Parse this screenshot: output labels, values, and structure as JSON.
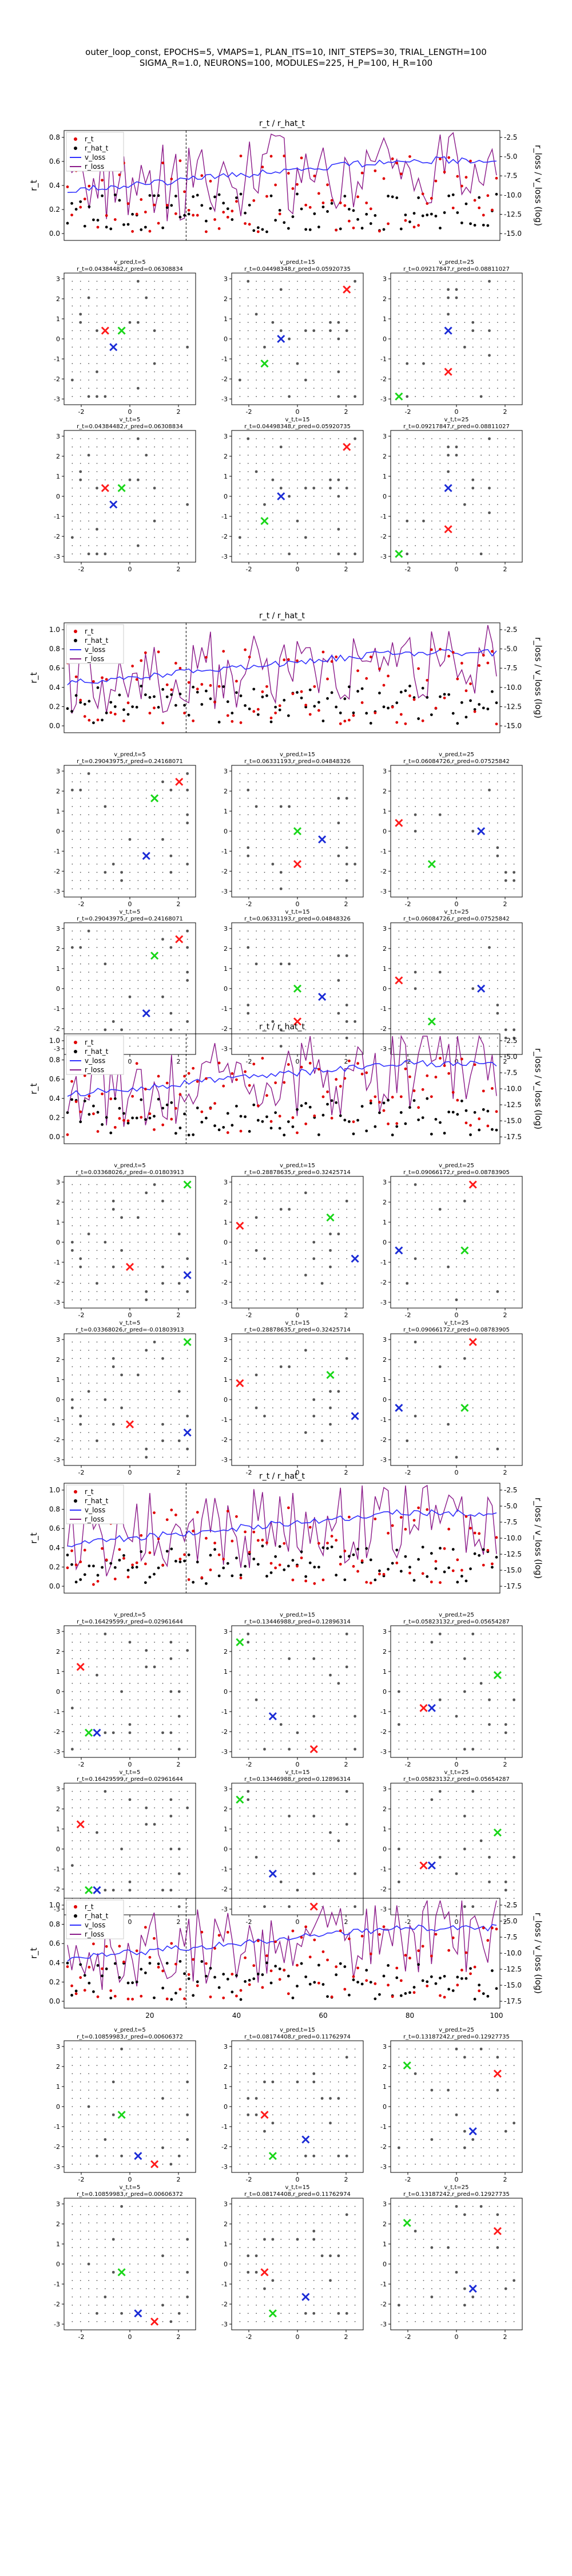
{
  "figure": {
    "title_line1": "outer_loop_const, EPOCHS=5, VMAPS=1, PLAN_ITS=10, INIT_STEPS=30, TRIAL_LENGTH=100",
    "title_line2": "SIGMA_R=1.0, NEURONS=100, MODULES=225, H_P=100, H_R=100"
  },
  "colors": {
    "r_t": "#e00000",
    "r_hat_t": "#000000",
    "v_loss": "#3030ff",
    "r_loss": "#8b1a89",
    "grid_green": "#19d619",
    "grid_red": "#ff1a1a",
    "grid_blue": "#1a2bd6",
    "grid_dot": "#555555"
  },
  "chart_data": {
    "type": "line",
    "x_ticks": [
      20,
      40,
      60,
      80,
      100
    ],
    "blocks": [
      {
        "line_title": "r_t / r_hat_t",
        "ylabel_left": "r_t",
        "ylabel_right": "r_loss / v_loss (log)",
        "y_left_ticks": [
          "0.0",
          "0.2",
          "0.4",
          "0.6",
          "0.8"
        ],
        "y_right_ticks": [
          "-2.5",
          "-5.0",
          "-7.5",
          "-10.0",
          "-12.5",
          "-15.0"
        ],
        "legend": [
          "r_t",
          "r_hat_t",
          "v_loss",
          "r_loss"
        ],
        "grid_titles_top": [
          "v_pred,t=5",
          "v_pred,t=15",
          "v_pred,t=25"
        ],
        "grid_subtitles_top": [
          "r_t=0.04384482,r_pred=0.06308834",
          "r_t=0.04498348,r_pred=0.05920735",
          "r_t=0.09217847,r_pred=0.08811027"
        ],
        "grid_titles_bottom": [
          "v_t,t=5",
          "v_t,t=15",
          "v_t,t=25"
        ],
        "grid_subtitles_bottom": [
          "r_t=0.04384482,r_pred=0.06308834",
          "r_t=0.04498348,r_pred=0.05920735",
          "r_t=0.09217847,r_pred=0.08811027"
        ],
        "xtick_labels": [
          "-2",
          "0",
          "2"
        ],
        "ytick_labels": [
          "3",
          "2",
          "1",
          "0",
          "-1",
          "-2",
          "-3"
        ]
      },
      {
        "line_title": "r_t / r_hat_t",
        "ylabel_left": "r_t",
        "ylabel_right": "r_loss / v_loss (log)",
        "y_left_ticks": [
          "0.0",
          "0.2",
          "0.4",
          "0.6",
          "0.8",
          "1.0"
        ],
        "y_right_ticks": [
          "-2.5",
          "-5.0",
          "-7.5",
          "-10.0",
          "-12.5",
          "-15.0"
        ],
        "legend": [
          "r_t",
          "r_hat_t",
          "v_loss",
          "r_loss"
        ],
        "grid_titles_top": [
          "v_pred,t=5",
          "v_pred,t=15",
          "v_pred,t=25"
        ],
        "grid_subtitles_top": [
          "r_t=0.29043975,r_pred=0.24168071",
          "r_t=0.06331193,r_pred=0.04848326",
          "r_t=0.06084726,r_pred=0.07525842"
        ],
        "grid_titles_bottom": [
          "v_t,t=5",
          "v_t,t=15",
          "v_t,t=25"
        ],
        "grid_subtitles_bottom": [
          "r_t=0.29043975,r_pred=0.24168071",
          "r_t=0.06331193,r_pred=0.04848326",
          "r_t=0.06084726,r_pred=0.07525842"
        ],
        "xtick_labels": [
          "-2",
          "0",
          "2"
        ],
        "ytick_labels": [
          "3",
          "2",
          "1",
          "0",
          "-1",
          "-2",
          "-3"
        ]
      },
      {
        "line_title": "r_t / r_hat_t",
        "ylabel_left": "r_t",
        "ylabel_right": "r_loss / v_loss (log)",
        "y_left_ticks": [
          "0.0",
          "0.2",
          "0.4",
          "0.6",
          "0.8",
          "1.0"
        ],
        "y_right_ticks": [
          "-2.5",
          "-5.0",
          "-7.5",
          "-10.0",
          "-12.5",
          "-15.0",
          "-17.5"
        ],
        "legend": [
          "r_t",
          "r_hat_t",
          "v_loss",
          "r_loss"
        ],
        "grid_titles_top": [
          "v_pred,t=5",
          "v_pred,t=15",
          "v_pred,t=25"
        ],
        "grid_subtitles_top": [
          "r_t=0.03368026,r_pred=-0.01803913",
          "r_t=0.28878635,r_pred=0.32425714",
          "r_t=0.09066172,r_pred=0.08783905"
        ],
        "grid_titles_bottom": [
          "v_t,t=5",
          "v_t,t=15",
          "v_t,t=25"
        ],
        "grid_subtitles_bottom": [
          "r_t=0.03368026,r_pred=-0.01803913",
          "r_t=0.28878635,r_pred=0.32425714",
          "r_t=0.09066172,r_pred=0.08783905"
        ],
        "xtick_labels": [
          "-2",
          "0",
          "2"
        ],
        "ytick_labels": [
          "3",
          "2",
          "1",
          "0",
          "-1",
          "-2",
          "-3"
        ]
      },
      {
        "line_title": "r_t / r_hat_t",
        "ylabel_left": "r_t",
        "ylabel_right": "r_loss / v_loss (log)",
        "y_left_ticks": [
          "0.0",
          "0.2",
          "0.4",
          "0.6",
          "0.8",
          "1.0"
        ],
        "y_right_ticks": [
          "-2.5",
          "-5.0",
          "-7.5",
          "-10.0",
          "-12.5",
          "-15.0",
          "-17.5"
        ],
        "legend": [
          "r_t",
          "r_hat_t",
          "v_loss",
          "r_loss"
        ],
        "grid_titles_top": [
          "v_pred,t=5",
          "v_pred,t=15",
          "v_pred,t=25"
        ],
        "grid_subtitles_top": [
          "r_t=0.16429599,r_pred=0.02961644",
          "r_t=0.13446988,r_pred=0.12896314",
          "r_t=0.05823132,r_pred=0.05654287"
        ],
        "grid_titles_bottom": [
          "v_t,t=5",
          "v_t,t=15",
          "v_t,t=25"
        ],
        "grid_subtitles_bottom": [
          "r_t=0.16429599,r_pred=0.02961644",
          "r_t=0.13446988,r_pred=0.12896314",
          "r_t=0.05823132,r_pred=0.05654287"
        ],
        "xtick_labels": [
          "-2",
          "0",
          "2"
        ],
        "ytick_labels": [
          "3",
          "2",
          "1",
          "0",
          "-1",
          "-2",
          "-3"
        ]
      },
      {
        "line_title": "",
        "ylabel_left": "r_t",
        "ylabel_right": "r_loss / v_loss (log)",
        "y_left_ticks": [
          "0.0",
          "0.2",
          "0.4",
          "0.6",
          "0.8",
          "1.0"
        ],
        "y_right_ticks": [
          "-2.5",
          "-5.0",
          "-7.5",
          "-10.0",
          "-12.5",
          "-15.0",
          "-17.5"
        ],
        "legend": [
          "r_t",
          "r_hat_t",
          "v_loss",
          "r_loss"
        ],
        "grid_titles_top": [
          "v_pred,t=5",
          "v_pred,t=15",
          "v_pred,t=25"
        ],
        "grid_subtitles_top": [
          "r_t=0.10859983,r_pred=0.00606372",
          "r_t=0.08174408,r_pred=0.11762974",
          "r_t=0.13187242,r_pred=0.12927735"
        ],
        "grid_titles_bottom": [
          "v_t,t=5",
          "v_t,t=15",
          "v_t,t=25"
        ],
        "grid_subtitles_bottom": [
          "r_t=0.10859983,r_pred=0.00606372",
          "r_t=0.08174408,r_pred=0.11762974",
          "r_t=0.13187242,r_pred=0.12927735"
        ],
        "xtick_labels": [
          "-2",
          "0",
          "2"
        ],
        "ytick_labels": [
          "3",
          "2",
          "1",
          "0",
          "-1",
          "-2",
          "-3"
        ]
      }
    ]
  }
}
